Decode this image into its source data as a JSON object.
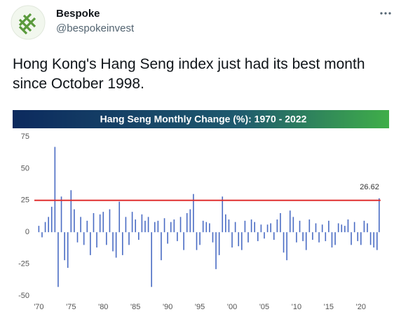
{
  "tweet": {
    "author": "Bespoke",
    "handle": "@bespokeinvest",
    "text": "Hong Kong's Hang Seng index just had its best month since October 1998."
  },
  "chart_data": {
    "type": "bar",
    "title": "Hang Seng Monthly Change (%): 1970 - 2022",
    "x": [
      1970,
      1970.5,
      1971,
      1971.5,
      1972,
      1972.5,
      1973,
      1973.5,
      1974,
      1974.5,
      1975,
      1975.5,
      1976,
      1976.5,
      1977,
      1977.5,
      1978,
      1978.5,
      1979,
      1979.5,
      1980,
      1980.5,
      1981,
      1981.5,
      1982,
      1982.5,
      1983,
      1983.5,
      1984,
      1984.5,
      1985,
      1985.5,
      1986,
      1986.5,
      1987,
      1987.5,
      1988,
      1988.5,
      1989,
      1989.5,
      1990,
      1990.5,
      1991,
      1991.5,
      1992,
      1992.5,
      1993,
      1993.5,
      1994,
      1994.5,
      1995,
      1995.5,
      1996,
      1996.5,
      1997,
      1997.5,
      1998,
      1998.5,
      1999,
      1999.5,
      2000,
      2000.5,
      2001,
      2001.5,
      2002,
      2002.5,
      2003,
      2003.5,
      2004,
      2004.5,
      2005,
      2005.5,
      2006,
      2006.5,
      2007,
      2007.5,
      2008,
      2008.5,
      2009,
      2009.5,
      2010,
      2010.5,
      2011,
      2011.5,
      2012,
      2012.5,
      2013,
      2013.5,
      2014,
      2014.5,
      2015,
      2015.5,
      2016,
      2016.5,
      2017,
      2017.5,
      2018,
      2018.5,
      2019,
      2019.5,
      2020,
      2020.5,
      2021,
      2021.5,
      2022,
      2022.5,
      2022.83
    ],
    "series": [
      {
        "name": "Monthly change",
        "color": "#4a6cc4",
        "values": [
          5,
          -4,
          8,
          12,
          20,
          67,
          -43,
          28,
          -22,
          -28,
          33,
          18,
          -8,
          12,
          -10,
          9,
          -18,
          15,
          -12,
          14,
          16,
          -10,
          18,
          -15,
          -20,
          24,
          -18,
          12,
          -10,
          16,
          10,
          -6,
          14,
          9,
          12,
          -43,
          8,
          9,
          -22,
          11,
          -9,
          8,
          10,
          -7,
          12,
          -14,
          15,
          18,
          30,
          -14,
          -10,
          9,
          8,
          7,
          -8,
          -29,
          -18,
          28,
          14,
          10,
          -12,
          8,
          -11,
          -14,
          9,
          -8,
          10,
          8,
          -7,
          6,
          -5,
          6,
          7,
          -6,
          10,
          15,
          -16,
          -22,
          17,
          12,
          -8,
          9,
          -7,
          -14,
          10,
          -6,
          7,
          -8,
          6,
          -7,
          9,
          -12,
          -10,
          7,
          6,
          5,
          10,
          -10,
          8,
          -7,
          -10,
          9,
          7,
          -10,
          -12,
          -14,
          26.62
        ]
      }
    ],
    "threshold": 25,
    "threshold_color": "#e03030",
    "xlim": [
      1968,
      2023.5
    ],
    "xticks": [
      {
        "value": 1970,
        "label": "'70"
      },
      {
        "value": 1975,
        "label": "'75"
      },
      {
        "value": 1980,
        "label": "'80"
      },
      {
        "value": 1985,
        "label": "'85"
      },
      {
        "value": 1990,
        "label": "'90"
      },
      {
        "value": 1995,
        "label": "'95"
      },
      {
        "value": 2000,
        "label": "'00"
      },
      {
        "value": 2005,
        "label": "'05"
      },
      {
        "value": 2010,
        "label": "'10"
      },
      {
        "value": 2015,
        "label": "'15"
      },
      {
        "value": 2020,
        "label": "'20"
      }
    ],
    "ylim": [
      -50,
      75
    ],
    "yticks": [
      -50,
      -25,
      0,
      25,
      50,
      75
    ],
    "grid": false
  }
}
